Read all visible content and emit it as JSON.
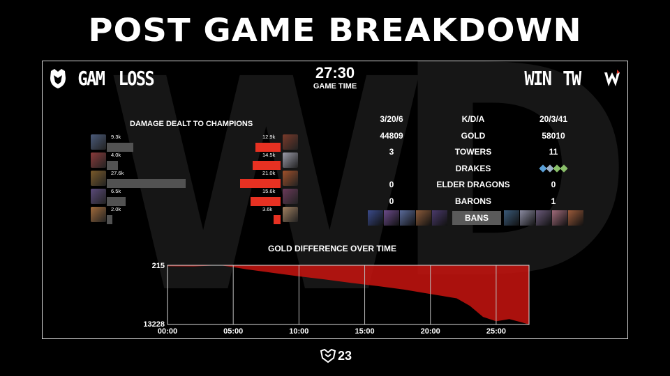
{
  "title": "POST GAME BREAKDOWN",
  "teams": {
    "left": {
      "name": "GAM",
      "result": "LOSS",
      "logo_icon": "gam-logo-icon",
      "color": "#525252"
    },
    "right": {
      "name": "TW",
      "result": "WIN",
      "logo_icon": "tw-logo-icon",
      "color": "#e63122"
    }
  },
  "game_time": {
    "value": "27:30",
    "label": "GAME TIME"
  },
  "damage": {
    "title": "DAMAGE DEALT TO CHAMPIONS",
    "left": [
      {
        "label": "9.3k",
        "value": 9.3
      },
      {
        "label": "4.0k",
        "value": 4.0
      },
      {
        "label": "27.6k",
        "value": 27.6
      },
      {
        "label": "6.5k",
        "value": 6.5
      },
      {
        "label": "2.0k",
        "value": 2.0
      }
    ],
    "right": [
      {
        "label": "12.9k",
        "value": 12.9
      },
      {
        "label": "14.5k",
        "value": 14.5
      },
      {
        "label": "21.0k",
        "value": 21.0
      },
      {
        "label": "15.6k",
        "value": 15.6
      },
      {
        "label": "3.6k",
        "value": 3.6
      }
    ]
  },
  "stats": [
    {
      "label": "K/D/A",
      "left": "3/20/6",
      "right": "20/3/41"
    },
    {
      "label": "GOLD",
      "left": "44809",
      "right": "58010"
    },
    {
      "label": "TOWERS",
      "left": "3",
      "right": "11"
    },
    {
      "label": "DRAKES",
      "left": "",
      "right": ""
    },
    {
      "label": "ELDER DRAGONS",
      "left": "0",
      "right": "0"
    },
    {
      "label": "BARONS",
      "left": "0",
      "right": "1"
    }
  ],
  "drakes_right": [
    "ocean-drake-icon",
    "mountain-drake-icon",
    "chemtech-drake-icon",
    "chemtech-drake-icon"
  ],
  "bans_label": "BANS",
  "gold_chart": {
    "title": "GOLD DIFFERENCE OVER TIME",
    "ymax_label": "215",
    "ymin_label": "13228",
    "x_ticks": [
      "00:00",
      "05:00",
      "10:00",
      "15:00",
      "20:00",
      "25:00"
    ]
  },
  "chart_data": {
    "type": "area",
    "title": "GOLD DIFFERENCE OVER TIME",
    "xlabel": "",
    "ylabel": "",
    "x": [
      0,
      2,
      4,
      5,
      6,
      8,
      10,
      12,
      14,
      16,
      18,
      20,
      22,
      23,
      24,
      25,
      26,
      27,
      27.5
    ],
    "series": [
      {
        "values": [
          0,
          -50,
          215,
          -200,
          -700,
          -1500,
          -2300,
          -3000,
          -3800,
          -4500,
          -5300,
          -6300,
          -7300,
          -9000,
          -11500,
          -12500,
          -12000,
          -12800,
          -13228
        ]
      }
    ],
    "ylim": [
      -13228,
      215
    ],
    "xlim": [
      0,
      27.5
    ]
  },
  "footer_logo": "23"
}
